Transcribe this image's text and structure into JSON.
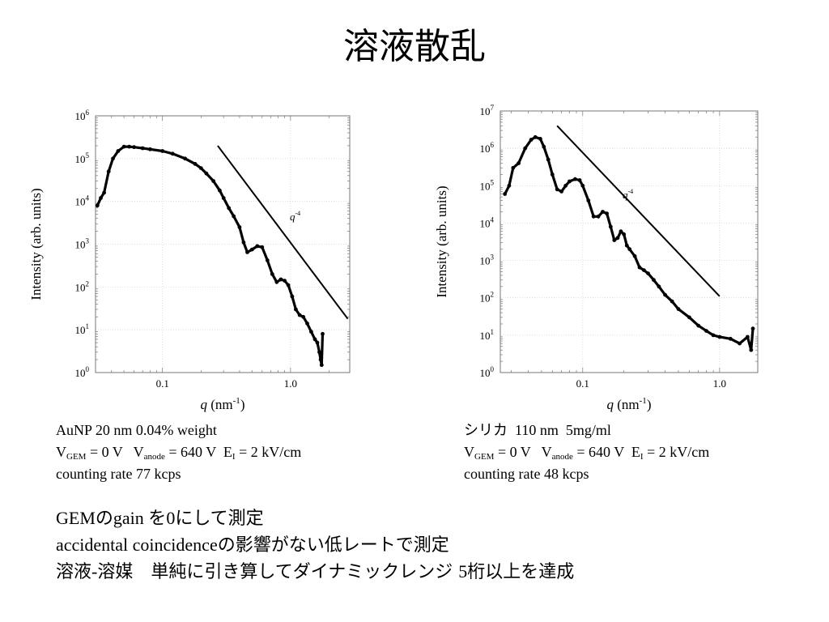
{
  "slide": {
    "title": "溶液散乱"
  },
  "chart_data": [
    {
      "type": "scatter",
      "xscale": "log",
      "yscale": "log",
      "xlim": [
        0.03,
        2.9
      ],
      "ylim": [
        1,
        1000000
      ],
      "xticks": [
        "0.1",
        "1.0"
      ],
      "yticks": [
        {
          "base": "10",
          "exp": "0"
        },
        {
          "base": "10",
          "exp": "1"
        },
        {
          "base": "10",
          "exp": "2"
        },
        {
          "base": "10",
          "exp": "3"
        },
        {
          "base": "10",
          "exp": "4"
        },
        {
          "base": "10",
          "exp": "5"
        },
        {
          "base": "10",
          "exp": "6"
        }
      ],
      "xlabel": {
        "var": "q",
        "unit": "(nm",
        "exp": "-1",
        "close": ")"
      },
      "ylabel": "Intensity (arb. units)",
      "annotation": {
        "var": "q",
        "exp": "-4"
      },
      "grid": true,
      "series": [
        {
          "x": [
            0.031,
            0.033,
            0.035,
            0.038,
            0.041,
            0.045,
            0.05,
            0.055,
            0.06,
            0.07,
            0.08,
            0.1,
            0.12,
            0.15,
            0.18,
            0.2,
            0.22,
            0.25,
            0.28,
            0.3,
            0.33,
            0.36,
            0.4,
            0.43,
            0.46,
            0.5,
            0.55,
            0.6,
            0.66,
            0.72,
            0.78,
            0.84,
            0.9,
            0.96,
            1.03,
            1.1,
            1.18,
            1.26,
            1.35,
            1.45,
            1.55,
            1.62,
            1.68,
            1.72,
            1.75,
            1.78
          ],
          "y": [
            8000,
            12000,
            16000,
            50000,
            100000,
            150000,
            190000,
            190000,
            185000,
            175000,
            165000,
            150000,
            130000,
            100000,
            75000,
            60000,
            45000,
            30000,
            18000,
            12000,
            7000,
            4500,
            2500,
            1100,
            650,
            750,
            900,
            850,
            420,
            200,
            130,
            150,
            140,
            110,
            60,
            30,
            22,
            20,
            14,
            9,
            6,
            5,
            3,
            2,
            1.5,
            8
          ]
        }
      ],
      "guide_line": {
        "x": [
          0.27,
          2.8
        ],
        "y": [
          200000,
          18
        ]
      }
    },
    {
      "type": "scatter",
      "xscale": "log",
      "yscale": "log",
      "xlim": [
        0.025,
        1.9
      ],
      "ylim": [
        1,
        10000000
      ],
      "xticks": [
        "0.1",
        "1.0"
      ],
      "yticks": [
        {
          "base": "10",
          "exp": "0"
        },
        {
          "base": "10",
          "exp": "1"
        },
        {
          "base": "10",
          "exp": "2"
        },
        {
          "base": "10",
          "exp": "3"
        },
        {
          "base": "10",
          "exp": "4"
        },
        {
          "base": "10",
          "exp": "5"
        },
        {
          "base": "10",
          "exp": "6"
        },
        {
          "base": "10",
          "exp": "7"
        }
      ],
      "xlabel": {
        "var": "q",
        "unit": "(nm",
        "exp": "-1",
        "close": ")"
      },
      "ylabel": "Intensity (arb. units)",
      "annotation": {
        "var": "q",
        "exp": "-4"
      },
      "grid": true,
      "series": [
        {
          "x": [
            0.027,
            0.029,
            0.031,
            0.034,
            0.038,
            0.042,
            0.045,
            0.049,
            0.052,
            0.056,
            0.06,
            0.065,
            0.07,
            0.075,
            0.08,
            0.088,
            0.095,
            0.1,
            0.11,
            0.12,
            0.13,
            0.14,
            0.15,
            0.16,
            0.17,
            0.18,
            0.19,
            0.2,
            0.21,
            0.22,
            0.24,
            0.26,
            0.28,
            0.3,
            0.33,
            0.36,
            0.4,
            0.45,
            0.5,
            0.6,
            0.7,
            0.8,
            0.9,
            1.0,
            1.2,
            1.4,
            1.6,
            1.7,
            1.75
          ],
          "y": [
            60000,
            100000,
            300000,
            400000,
            1000000,
            1700000,
            2000000,
            1800000,
            1100000,
            500000,
            200000,
            80000,
            70000,
            100000,
            130000,
            150000,
            140000,
            100000,
            40000,
            15000,
            15000,
            20000,
            18000,
            8000,
            3500,
            4000,
            6000,
            5000,
            2500,
            2000,
            1300,
            650,
            550,
            450,
            300,
            200,
            120,
            80,
            50,
            30,
            18,
            13,
            10,
            9,
            8,
            6,
            9,
            4,
            15
          ]
        }
      ],
      "guide_line": {
        "x": [
          0.065,
          1.0
        ],
        "y": [
          4000000,
          110
        ]
      }
    }
  ],
  "captions": {
    "left": {
      "line1": "AuNP  20 nm 0.04% weight",
      "vgem_v": "V",
      "vgem_sub": "GEM",
      "vgem_val": " = 0 V   ",
      "vanode_v": "V",
      "vanode_sub": "anode",
      "vanode_val": " = 640 V  ",
      "ei_e": "E",
      "ei_sub": "I",
      "ei_val": " = 2 kV/cm",
      "line3": "counting rate  77 kcps"
    },
    "right": {
      "line1_jp": "シリカ",
      "line1_rest": "  110 nm  5mg/ml",
      "vgem_v": "V",
      "vgem_sub": "GEM",
      "vgem_val": " = 0 V   ",
      "vanode_v": "V",
      "vanode_sub": "anode",
      "vanode_val": " = 640 V  ",
      "ei_e": "E",
      "ei_sub": "I",
      "ei_val": " = 2 kV/cm",
      "line3": "counting rate  48 kcps"
    }
  },
  "notes": {
    "line1_a": "GEM",
    "line1_b": "の",
    "line1_c": "gain ",
    "line1_d": "を",
    "line1_e": "0",
    "line1_f": "にして測定",
    "line2_a": "accidental coincidence",
    "line2_b": "の影響がない低レートで測定",
    "line3_a": "溶液",
    "line3_b": "-",
    "line3_c": "溶媒",
    "line3_d": "単純に引き算してダイナミックレンジ ",
    "line3_e": "5",
    "line3_f": "桁以上を達成"
  }
}
